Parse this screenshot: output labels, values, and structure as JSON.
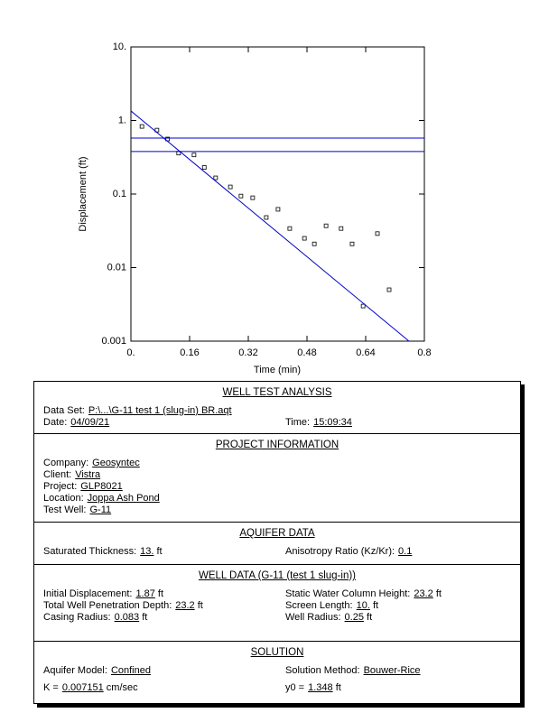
{
  "chart_data": {
    "type": "scatter",
    "ylog": true,
    "xlabel": "Time (min)",
    "ylabel": "Displacement (ft)",
    "xlim": [
      0,
      0.8
    ],
    "ylim": [
      0.001,
      10
    ],
    "xticks": [
      {
        "value": 0,
        "label": "0."
      },
      0.16,
      0.32,
      0.48,
      0.64,
      0.8
    ],
    "yticks": [
      0.001,
      0.01,
      0.1,
      {
        "value": 1,
        "label": "1."
      },
      {
        "value": 10,
        "label": "10."
      }
    ],
    "series": [
      {
        "type": "scatter",
        "color": "#000000",
        "x": [
          0.03,
          0.071,
          0.1,
          0.13,
          0.172,
          0.2,
          0.231,
          0.271,
          0.3,
          0.332,
          0.369,
          0.401,
          0.433,
          0.473,
          0.5,
          0.532,
          0.573,
          0.603,
          0.633,
          0.672,
          0.704
        ],
        "values": [
          0.83,
          0.74,
          0.56,
          0.36,
          0.34,
          0.23,
          0.166,
          0.125,
          0.094,
          0.089,
          0.048,
          0.062,
          0.034,
          0.025,
          0.021,
          0.037,
          0.034,
          0.021,
          0.003,
          0.029,
          0.005
        ]
      },
      {
        "type": "line",
        "color": "#0000cc",
        "x": [
          0,
          0.758
        ],
        "values": [
          1.348,
          0.001
        ]
      },
      {
        "type": "line",
        "color": "#0000cc",
        "x": [
          0,
          0.8
        ],
        "values": [
          0.577,
          0.577
        ]
      },
      {
        "type": "line",
        "color": "#0000cc",
        "x": [
          0,
          0.8
        ],
        "values": [
          0.378,
          0.378
        ]
      }
    ]
  },
  "report": {
    "sections": [
      {
        "title": "WELL TEST ANALYSIS",
        "rows": [
          [
            {
              "label": "Data Set:",
              "value": "P:\\...\\G-11 test 1 (slug-in) BR.aqt"
            }
          ],
          [
            {
              "label": "Date:",
              "value": "04/09/21"
            },
            {
              "label": "Time:",
              "value": "15:09:34"
            }
          ]
        ]
      },
      {
        "title": "PROJECT INFORMATION",
        "rows": [
          [
            {
              "label": "Company:",
              "value": "Geosyntec"
            }
          ],
          [
            {
              "label": "Client:",
              "value": "Vistra"
            }
          ],
          [
            {
              "label": "Project:",
              "value": "GLP8021"
            }
          ],
          [
            {
              "label": "Location:",
              "value": "Joppa Ash Pond"
            }
          ],
          [
            {
              "label": "Test Well:",
              "value": "G-11"
            }
          ]
        ]
      },
      {
        "title": "AQUIFER DATA",
        "rows": [
          [
            {
              "label": "Saturated Thickness:",
              "value": "13.",
              "unit": "ft"
            },
            {
              "label": "Anisotropy Ratio (Kz/Kr):",
              "value": "0.1"
            }
          ]
        ]
      },
      {
        "title": "WELL DATA (G-11 (test 1 slug-in))",
        "rows": [
          [
            {
              "label": "Initial Displacement:",
              "value": "1.87",
              "unit": "ft"
            },
            {
              "label": "Static Water Column Height:",
              "value": "23.2",
              "unit": "ft"
            }
          ],
          [
            {
              "label": "Total Well Penetration Depth:",
              "value": "23.2",
              "unit": "ft"
            },
            {
              "label": "Screen Length:",
              "value": "10.",
              "unit": "ft"
            }
          ],
          [
            {
              "label": "Casing Radius:",
              "value": "0.083",
              "unit": "ft"
            },
            {
              "label": "Well Radius:",
              "value": "0.25",
              "unit": "ft"
            }
          ]
        ]
      },
      {
        "title": "SOLUTION",
        "rows": [
          [
            {
              "label": "Aquifer Model:",
              "value": "Confined"
            },
            {
              "label": "Solution Method:",
              "value": "Bouwer-Rice"
            }
          ],
          [
            {
              "label": "K =",
              "value": "0.007151",
              "unit": "cm/sec"
            },
            {
              "label": "y0 =",
              "value": "1.348",
              "unit": "ft"
            }
          ]
        ]
      }
    ]
  }
}
